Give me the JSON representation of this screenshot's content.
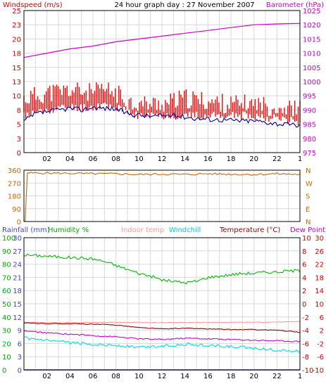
{
  "colors": {
    "grid": "#d8d8d8",
    "frame": "#000000",
    "windspeed_label": "#cc0000",
    "barometer_label": "#cc00cc",
    "rainfall": "#4444cc",
    "humidity": "#00aa00",
    "indoor": "#ff9999",
    "windchill": "#00cccc",
    "temperature": "#990000",
    "dewpoint": "#cc00cc",
    "winddir": "#cc6600",
    "right_temp_axis": "#cc0000"
  },
  "header": {
    "left_label": "Windspeed (m/s)",
    "center_title": "24 hour graph day : 27 November 2007",
    "right_label": "Barometer (hPa)"
  },
  "bottom_legend": {
    "rainfall": "Rainfall (mm)",
    "humidity": "Humidity %",
    "indoor": "Indoor temp",
    "windchill": "Windchill",
    "temperature": "Temperature (°C)",
    "dewpoint": "Dew Point"
  },
  "chart_data": [
    {
      "type": "line",
      "name": "wind-barometer",
      "x_ticks": [
        "02",
        "04",
        "06",
        "08",
        "10",
        "12",
        "14",
        "16",
        "18",
        "20",
        "22"
      ],
      "y_left_ticks": [
        "0",
        "3",
        "5",
        "8",
        "10",
        "13",
        "15",
        "18",
        "20",
        "23",
        "25"
      ],
      "y_left_range": [
        0,
        25
      ],
      "y_right_ticks": [
        "975",
        "980",
        "985",
        "990",
        "995",
        "1000",
        "1005",
        "1010",
        "1015",
        "1020",
        "1025"
      ],
      "y_right_range": [
        975,
        1025
      ],
      "series": [
        {
          "key": "wind_gust",
          "color": "#ff0000",
          "style": "bar",
          "x": [
            0,
            2,
            4,
            6,
            7,
            8,
            9,
            10,
            12,
            14,
            16,
            18,
            20,
            22,
            24
          ],
          "y_upper": [
            9.5,
            10.5,
            11,
            10.5,
            11,
            10.5,
            9,
            8.5,
            8.5,
            9.5,
            9,
            8.5,
            8.5,
            8,
            7.5
          ],
          "y_lower": [
            6.5,
            7.5,
            8,
            8,
            8.5,
            8,
            7,
            6.5,
            6.5,
            6.5,
            6.5,
            6.5,
            6.5,
            6,
            5.5
          ]
        },
        {
          "key": "wind_avg",
          "color": "#000099",
          "x": [
            0,
            1,
            2,
            3,
            4,
            5,
            6,
            7,
            8,
            9,
            10,
            11,
            12,
            13,
            14,
            15,
            16,
            17,
            18,
            19,
            20,
            21,
            22,
            23,
            24
          ],
          "y": [
            5.5,
            6.8,
            7.2,
            7.5,
            7.8,
            7.5,
            8.0,
            7.8,
            7.7,
            6.9,
            6.6,
            6.4,
            6.5,
            6.6,
            6.3,
            6.0,
            5.9,
            5.8,
            5.7,
            5.6,
            5.6,
            5.4,
            5.1,
            4.9,
            4.8
          ]
        },
        {
          "key": "barometer",
          "color": "#cc00cc",
          "axis": "right",
          "x": [
            0,
            2,
            4,
            6,
            8,
            10,
            12,
            14,
            16,
            18,
            20,
            22,
            24
          ],
          "y": [
            1008.5,
            1010,
            1011.5,
            1012.5,
            1014,
            1015,
            1016,
            1017,
            1018,
            1019,
            1020,
            1020.3,
            1020.5
          ]
        }
      ]
    },
    {
      "type": "line",
      "name": "wind-direction",
      "y_left_ticks": [
        "0",
        "90",
        "180",
        "270",
        "360"
      ],
      "y_left_range": [
        0,
        360
      ],
      "y_right_ticks": [
        "N",
        "E",
        "S",
        "W",
        "N"
      ],
      "series": [
        {
          "key": "winddir",
          "color": "#cc6600",
          "x": [
            0,
            0.1,
            0.3,
            2,
            4,
            6,
            8,
            10,
            12,
            14,
            16,
            18,
            20,
            22,
            24
          ],
          "y": [
            0,
            0,
            340,
            340,
            338,
            335,
            335,
            330,
            333,
            330,
            335,
            332,
            330,
            335,
            330
          ]
        }
      ]
    },
    {
      "type": "line",
      "name": "temperature-humidity",
      "x_ticks": [
        "02",
        "04",
        "06",
        "08",
        "10",
        "12",
        "14",
        "16",
        "18",
        "20",
        "22"
      ],
      "axis_rainfall": {
        "ticks": [
          "0",
          "3",
          "6",
          "9",
          "12",
          "15",
          "18",
          "21",
          "24",
          "27",
          "30"
        ],
        "range": [
          0,
          30
        ]
      },
      "axis_humidity": {
        "ticks": [
          "0",
          "10",
          "20",
          "30",
          "40",
          "50",
          "60",
          "70",
          "80",
          "90",
          "100"
        ],
        "range": [
          0,
          100
        ]
      },
      "axis_temp_left": {
        "ticks": [
          "-10",
          "-6",
          "-2",
          "2",
          "6",
          "10",
          "14",
          "18",
          "22",
          "26",
          "30"
        ],
        "range": [
          -10,
          30
        ]
      },
      "axis_temp_right": {
        "ticks": [
          "-10",
          "-8",
          "-6",
          "-4",
          "-2",
          "0",
          "2",
          "4",
          "6",
          "8",
          "10"
        ],
        "range": [
          -10,
          10
        ]
      },
      "series": [
        {
          "key": "humidity",
          "color": "#00bb00",
          "axis": "humidity",
          "x": [
            0,
            2,
            4,
            6,
            7,
            8,
            9,
            10,
            11,
            12,
            13,
            14,
            15,
            16,
            17,
            18,
            19,
            20,
            21,
            22,
            23,
            24
          ],
          "y": [
            87,
            86,
            85,
            84,
            82,
            79,
            76,
            73,
            71,
            68,
            67,
            66,
            67,
            70,
            71,
            72,
            73,
            73,
            74,
            74,
            75,
            75
          ]
        },
        {
          "key": "indoor_temp",
          "color": "#ff9999",
          "axis": "temp_left",
          "x": [
            0,
            4,
            8,
            12,
            16,
            20,
            24
          ],
          "y": [
            4.4,
            4.3,
            4.4,
            4.3,
            4.4,
            4.4,
            4.6
          ]
        },
        {
          "key": "temperature",
          "color": "#990000",
          "axis": "temp_right",
          "x": [
            0,
            2,
            4,
            6,
            8,
            10,
            12,
            14,
            16,
            18,
            20,
            22,
            24
          ],
          "y": [
            -2.9,
            -3.0,
            -3.0,
            -3.1,
            -3.2,
            -3.6,
            -3.8,
            -3.7,
            -3.8,
            -3.9,
            -3.9,
            -4.0,
            -4.3
          ]
        },
        {
          "key": "dewpoint",
          "color": "#cc00cc",
          "axis": "temp_right",
          "x": [
            0,
            2,
            4,
            6,
            8,
            10,
            12,
            14,
            16,
            18,
            20,
            22,
            24
          ],
          "y": [
            -4.1,
            -4.4,
            -4.6,
            -4.8,
            -5.0,
            -5.3,
            -5.4,
            -5.2,
            -5.3,
            -5.4,
            -5.5,
            -5.6,
            -5.7
          ]
        },
        {
          "key": "windchill",
          "color": "#00dddd",
          "axis": "temp_right",
          "x": [
            0,
            2,
            4,
            6,
            8,
            10,
            12,
            14,
            16,
            18,
            20,
            22,
            24
          ],
          "y": [
            -5.2,
            -5.6,
            -5.9,
            -6.1,
            -6.3,
            -6.6,
            -6.4,
            -6.1,
            -6.3,
            -6.5,
            -6.7,
            -7.0,
            -7.2
          ]
        },
        {
          "key": "rainfall",
          "color": "#3333cc",
          "axis": "rainfall",
          "x": [
            0,
            24
          ],
          "y": [
            0,
            0
          ]
        }
      ]
    }
  ]
}
